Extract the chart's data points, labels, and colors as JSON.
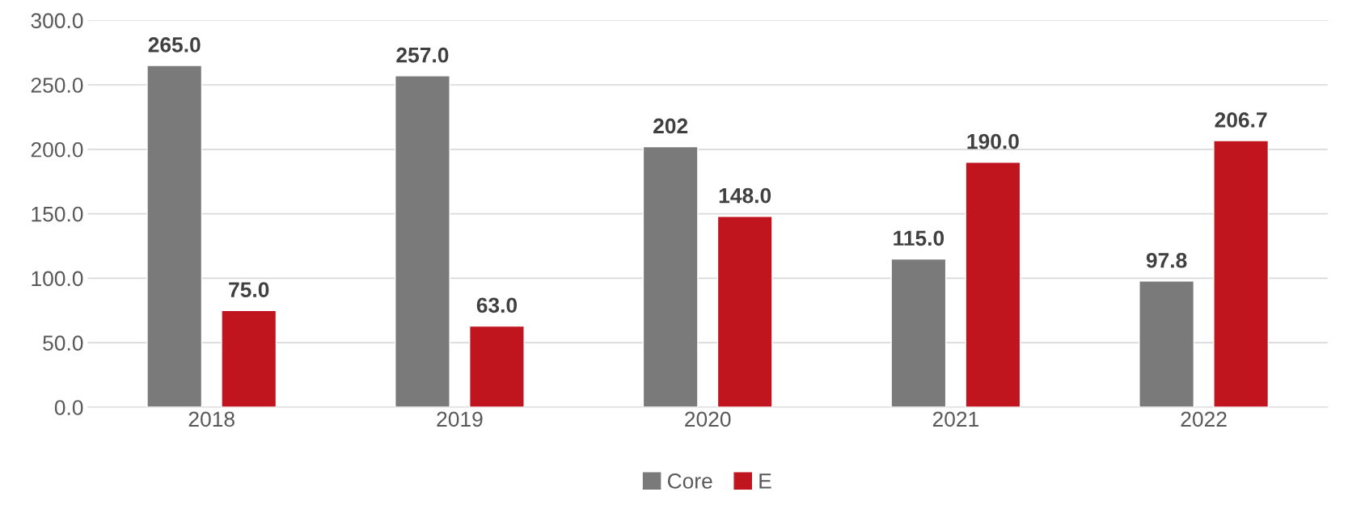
{
  "chart_data": {
    "type": "bar",
    "categories": [
      "2018",
      "2019",
      "2020",
      "2021",
      "2022"
    ],
    "series": [
      {
        "name": "Core",
        "color": "#7a7a7a",
        "values": [
          265.0,
          257.0,
          202,
          115.0,
          97.8
        ],
        "value_labels": [
          "265.0",
          "257.0",
          "202",
          "115.0",
          "97.8"
        ]
      },
      {
        "name": "E",
        "color": "#c0141f",
        "values": [
          75.0,
          63.0,
          148.0,
          190.0,
          206.7
        ],
        "value_labels": [
          "75.0",
          "63.0",
          "148.0",
          "190.0",
          "206.7"
        ]
      }
    ],
    "ylim": [
      0,
      300
    ],
    "yticks": [
      {
        "value": 0,
        "label": "0.0"
      },
      {
        "value": 50,
        "label": "50.0"
      },
      {
        "value": 100,
        "label": "100.0"
      },
      {
        "value": 150,
        "label": "150.0"
      },
      {
        "value": 200,
        "label": "200.0"
      },
      {
        "value": 250,
        "label": "250.0"
      },
      {
        "value": 300,
        "label": "300.0"
      }
    ],
    "grid": "y",
    "legend": "bottom"
  }
}
